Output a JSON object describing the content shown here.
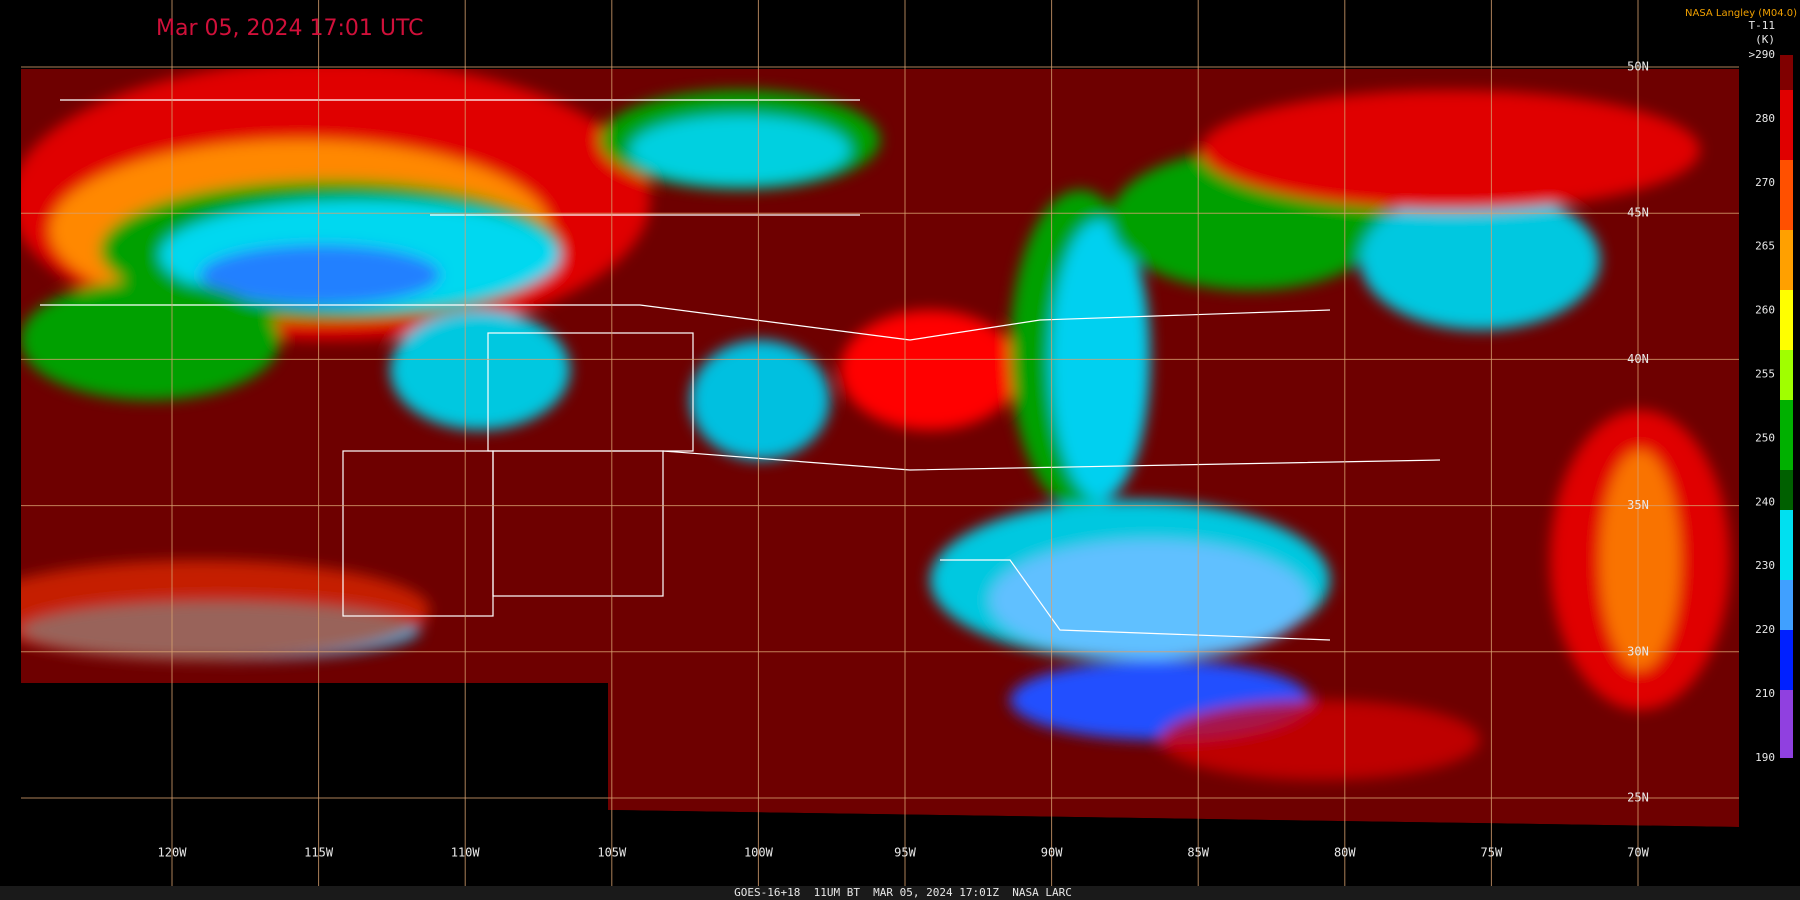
{
  "title": "Mar 05, 2024 17:01 UTC",
  "credit": "NASA Langley (M04.0)",
  "colorbar": {
    "product": "T-11",
    "units": "(K)",
    "labels": [
      ">290",
      "280",
      "270",
      "265",
      "260",
      "255",
      "250",
      "240",
      "230",
      "220",
      "210",
      "190"
    ]
  },
  "graticule": {
    "lon_labels": [
      "120W",
      "115W",
      "110W",
      "105W",
      "100W",
      "95W",
      "90W",
      "85W",
      "80W",
      "75W",
      "70W"
    ],
    "lat_labels": [
      "50N",
      "45N",
      "40N",
      "35N",
      "30N",
      "25N"
    ]
  },
  "footer": "GOES-16+18  11UM BT  MAR 05, 2024 17:01Z  NASA LARC"
}
